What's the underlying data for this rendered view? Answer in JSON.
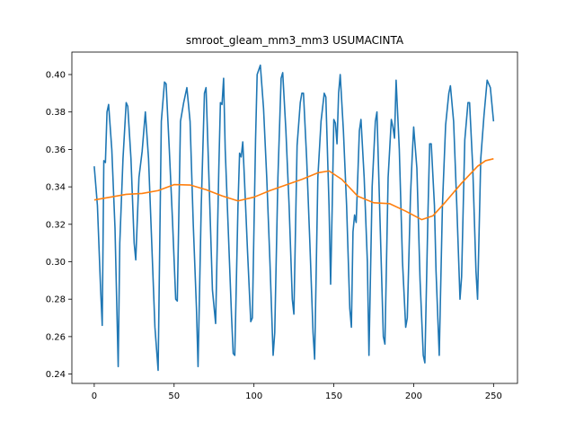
{
  "chart_data": {
    "type": "line",
    "title": "smroot_gleam_mm3_mm3 USUMACINTA",
    "xlabel": "",
    "ylabel": "",
    "xlim": [
      -14,
      265
    ],
    "ylim": [
      0.235,
      0.412
    ],
    "xticks": [
      0,
      50,
      100,
      150,
      200,
      250
    ],
    "yticks": [
      0.24,
      0.26,
      0.28,
      0.3,
      0.32,
      0.34,
      0.36,
      0.38,
      0.4
    ],
    "ytick_labels": [
      "0.24",
      "0.26",
      "0.28",
      "0.30",
      "0.32",
      "0.34",
      "0.36",
      "0.38",
      "0.40"
    ],
    "grid": false,
    "series": [
      {
        "color": "#1f77b4",
        "points": [
          [
            0,
            0.351
          ],
          [
            2,
            0.33
          ],
          [
            4,
            0.285
          ],
          [
            5,
            0.266
          ],
          [
            6,
            0.354
          ],
          [
            7,
            0.353
          ],
          [
            8,
            0.38
          ],
          [
            9,
            0.384
          ],
          [
            11,
            0.36
          ],
          [
            13,
            0.318
          ],
          [
            15,
            0.244
          ],
          [
            16,
            0.31
          ],
          [
            18,
            0.355
          ],
          [
            20,
            0.385
          ],
          [
            21,
            0.383
          ],
          [
            23,
            0.355
          ],
          [
            25,
            0.31
          ],
          [
            26,
            0.301
          ],
          [
            28,
            0.345
          ],
          [
            30,
            0.359
          ],
          [
            32,
            0.38
          ],
          [
            34,
            0.355
          ],
          [
            36,
            0.31
          ],
          [
            38,
            0.265
          ],
          [
            40,
            0.242
          ],
          [
            42,
            0.375
          ],
          [
            44,
            0.396
          ],
          [
            45,
            0.395
          ],
          [
            47,
            0.36
          ],
          [
            49,
            0.322
          ],
          [
            51,
            0.28
          ],
          [
            52,
            0.279
          ],
          [
            54,
            0.375
          ],
          [
            56,
            0.385
          ],
          [
            58,
            0.393
          ],
          [
            60,
            0.375
          ],
          [
            62,
            0.32
          ],
          [
            64,
            0.275
          ],
          [
            65,
            0.244
          ],
          [
            67,
            0.33
          ],
          [
            69,
            0.39
          ],
          [
            70,
            0.393
          ],
          [
            72,
            0.34
          ],
          [
            74,
            0.285
          ],
          [
            76,
            0.267
          ],
          [
            78,
            0.35
          ],
          [
            79,
            0.385
          ],
          [
            80,
            0.384
          ],
          [
            81,
            0.398
          ],
          [
            82,
            0.36
          ],
          [
            84,
            0.315
          ],
          [
            86,
            0.27
          ],
          [
            87,
            0.251
          ],
          [
            88,
            0.25
          ],
          [
            90,
            0.33
          ],
          [
            91,
            0.358
          ],
          [
            92,
            0.356
          ],
          [
            93,
            0.364
          ],
          [
            94,
            0.345
          ],
          [
            96,
            0.305
          ],
          [
            98,
            0.268
          ],
          [
            99,
            0.27
          ],
          [
            101,
            0.365
          ],
          [
            102,
            0.4
          ],
          [
            104,
            0.405
          ],
          [
            106,
            0.382
          ],
          [
            108,
            0.345
          ],
          [
            110,
            0.3
          ],
          [
            112,
            0.25
          ],
          [
            113,
            0.262
          ],
          [
            115,
            0.345
          ],
          [
            117,
            0.398
          ],
          [
            118,
            0.401
          ],
          [
            120,
            0.37
          ],
          [
            122,
            0.33
          ],
          [
            124,
            0.28
          ],
          [
            125,
            0.272
          ],
          [
            127,
            0.362
          ],
          [
            129,
            0.385
          ],
          [
            130,
            0.39
          ],
          [
            131,
            0.39
          ],
          [
            133,
            0.355
          ],
          [
            135,
            0.31
          ],
          [
            137,
            0.262
          ],
          [
            138,
            0.248
          ],
          [
            140,
            0.345
          ],
          [
            142,
            0.375
          ],
          [
            144,
            0.39
          ],
          [
            145,
            0.388
          ],
          [
            147,
            0.33
          ],
          [
            148,
            0.288
          ],
          [
            149,
            0.33
          ],
          [
            150,
            0.376
          ],
          [
            151,
            0.374
          ],
          [
            152,
            0.363
          ],
          [
            153,
            0.39
          ],
          [
            154,
            0.4
          ],
          [
            156,
            0.37
          ],
          [
            158,
            0.33
          ],
          [
            160,
            0.275
          ],
          [
            161,
            0.265
          ],
          [
            162,
            0.316
          ],
          [
            163,
            0.325
          ],
          [
            164,
            0.321
          ],
          [
            166,
            0.37
          ],
          [
            167,
            0.376
          ],
          [
            169,
            0.345
          ],
          [
            171,
            0.3
          ],
          [
            172,
            0.25
          ],
          [
            174,
            0.34
          ],
          [
            176,
            0.375
          ],
          [
            177,
            0.38
          ],
          [
            179,
            0.32
          ],
          [
            181,
            0.26
          ],
          [
            182,
            0.256
          ],
          [
            184,
            0.345
          ],
          [
            186,
            0.376
          ],
          [
            187,
            0.372
          ],
          [
            188,
            0.366
          ],
          [
            189,
            0.397
          ],
          [
            191,
            0.36
          ],
          [
            193,
            0.3
          ],
          [
            195,
            0.265
          ],
          [
            196,
            0.27
          ],
          [
            198,
            0.335
          ],
          [
            199,
            0.355
          ],
          [
            200,
            0.372
          ],
          [
            202,
            0.35
          ],
          [
            204,
            0.29
          ],
          [
            206,
            0.25
          ],
          [
            207,
            0.246
          ],
          [
            209,
            0.328
          ],
          [
            210,
            0.363
          ],
          [
            211,
            0.363
          ],
          [
            213,
            0.33
          ],
          [
            214,
            0.295
          ],
          [
            216,
            0.25
          ],
          [
            218,
            0.33
          ],
          [
            220,
            0.373
          ],
          [
            222,
            0.39
          ],
          [
            223,
            0.394
          ],
          [
            225,
            0.375
          ],
          [
            227,
            0.33
          ],
          [
            229,
            0.28
          ],
          [
            230,
            0.292
          ],
          [
            232,
            0.365
          ],
          [
            234,
            0.385
          ],
          [
            235,
            0.385
          ],
          [
            237,
            0.35
          ],
          [
            239,
            0.295
          ],
          [
            240,
            0.28
          ],
          [
            242,
            0.355
          ],
          [
            244,
            0.378
          ],
          [
            246,
            0.397
          ],
          [
            248,
            0.393
          ],
          [
            250,
            0.375
          ]
        ]
      },
      {
        "color": "#ff7f0e",
        "points": [
          [
            0,
            0.333
          ],
          [
            10,
            0.3345
          ],
          [
            20,
            0.336
          ],
          [
            30,
            0.3365
          ],
          [
            40,
            0.338
          ],
          [
            50,
            0.3412
          ],
          [
            60,
            0.341
          ],
          [
            70,
            0.3385
          ],
          [
            80,
            0.3352
          ],
          [
            90,
            0.3325
          ],
          [
            100,
            0.3345
          ],
          [
            110,
            0.338
          ],
          [
            120,
            0.341
          ],
          [
            130,
            0.344
          ],
          [
            140,
            0.3475
          ],
          [
            147,
            0.3485
          ],
          [
            155,
            0.344
          ],
          [
            165,
            0.335
          ],
          [
            175,
            0.3315
          ],
          [
            185,
            0.331
          ],
          [
            195,
            0.327
          ],
          [
            205,
            0.3225
          ],
          [
            212,
            0.3245
          ],
          [
            220,
            0.332
          ],
          [
            230,
            0.342
          ],
          [
            240,
            0.351
          ],
          [
            245,
            0.354
          ],
          [
            250,
            0.355
          ]
        ]
      }
    ]
  }
}
